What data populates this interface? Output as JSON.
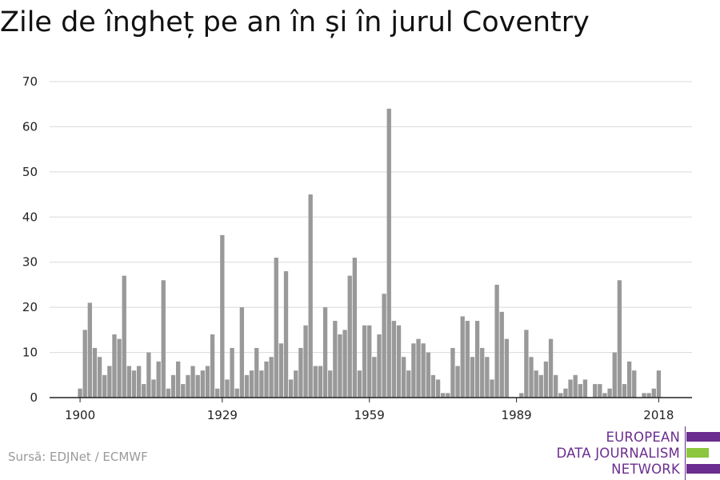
{
  "header": {
    "title": "Zile de îngheț pe an în și în jurul Coventry"
  },
  "footer": {
    "source": "Sursă: EDJNet / ECMWF"
  },
  "logo": {
    "lines": [
      "EUROPEAN",
      "DATA JOURNALISM",
      "NETWORK"
    ],
    "colors": {
      "purple": "#6b2d8f",
      "green": "#8cc63f"
    }
  },
  "chart_data": {
    "type": "bar",
    "title": "Zile de îngheț pe an în și în jurul Coventry",
    "xlabel": "",
    "ylabel": "",
    "ylim": [
      0,
      70
    ],
    "yticks": [
      0,
      10,
      20,
      30,
      40,
      50,
      60,
      70
    ],
    "xticks": [
      1900,
      1929,
      1959,
      1989,
      2018
    ],
    "grid": true,
    "bar_color": "#999999",
    "categories": [
      1900,
      1901,
      1902,
      1903,
      1904,
      1905,
      1906,
      1907,
      1908,
      1909,
      1910,
      1911,
      1912,
      1913,
      1914,
      1915,
      1916,
      1917,
      1918,
      1919,
      1920,
      1921,
      1922,
      1923,
      1924,
      1925,
      1926,
      1927,
      1928,
      1929,
      1930,
      1931,
      1932,
      1933,
      1934,
      1935,
      1936,
      1937,
      1938,
      1939,
      1940,
      1941,
      1942,
      1943,
      1944,
      1945,
      1946,
      1947,
      1948,
      1949,
      1950,
      1951,
      1952,
      1953,
      1954,
      1955,
      1956,
      1957,
      1958,
      1959,
      1960,
      1961,
      1962,
      1963,
      1964,
      1965,
      1966,
      1967,
      1968,
      1969,
      1970,
      1971,
      1972,
      1973,
      1974,
      1975,
      1976,
      1977,
      1978,
      1979,
      1980,
      1981,
      1982,
      1983,
      1984,
      1985,
      1986,
      1987,
      1988,
      1989,
      1990,
      1991,
      1992,
      1993,
      1994,
      1995,
      1996,
      1997,
      1998,
      1999,
      2000,
      2001,
      2002,
      2003,
      2004,
      2005,
      2006,
      2007,
      2008,
      2009,
      2010,
      2011,
      2012,
      2013,
      2014,
      2015,
      2016,
      2017,
      2018
    ],
    "values": [
      2,
      15,
      21,
      11,
      9,
      5,
      7,
      14,
      13,
      27,
      7,
      6,
      7,
      3,
      10,
      4,
      8,
      26,
      2,
      5,
      8,
      3,
      5,
      7,
      5,
      6,
      7,
      14,
      2,
      36,
      4,
      11,
      2,
      20,
      5,
      6,
      11,
      6,
      8,
      9,
      31,
      12,
      28,
      4,
      6,
      11,
      16,
      45,
      7,
      7,
      20,
      6,
      17,
      14,
      15,
      27,
      31,
      6,
      16,
      16,
      9,
      14,
      23,
      64,
      17,
      16,
      9,
      6,
      12,
      13,
      12,
      10,
      5,
      4,
      1,
      1,
      11,
      7,
      18,
      17,
      9,
      17,
      11,
      9,
      4,
      25,
      19,
      13,
      0,
      0,
      1,
      15,
      9,
      6,
      5,
      8,
      13,
      5,
      1,
      2,
      4,
      5,
      3,
      4,
      0,
      3,
      3,
      1,
      2,
      10,
      26,
      3,
      8,
      6,
      0,
      1,
      1,
      2,
      6
    ]
  }
}
